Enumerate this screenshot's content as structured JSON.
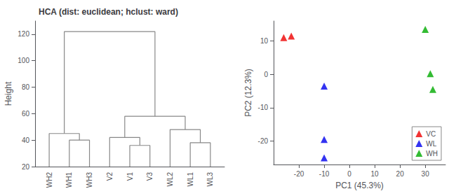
{
  "chart_data": [
    {
      "type": "dendrogram",
      "title": "HCA (dist: euclidean; hclust: ward)",
      "ylabel": "Height",
      "categories": [
        "WH2",
        "WH1",
        "WH3",
        "V2",
        "V1",
        "V3",
        "WL2",
        "WL1",
        "WL3"
      ],
      "ylim": [
        20,
        130
      ],
      "yticks": [
        20,
        40,
        60,
        80,
        100,
        120
      ],
      "grid": false,
      "color": "#888888",
      "tree": {
        "height": 122,
        "children": [
          {
            "height": 45,
            "children": [
              "WH2",
              {
                "height": 40,
                "children": [
                  "WH1",
                  "WH3"
                ]
              }
            ]
          },
          {
            "height": 58,
            "children": [
              {
                "height": 42,
                "children": [
                  "V2",
                  {
                    "height": 36,
                    "children": [
                      "V1",
                      "V3"
                    ]
                  }
                ]
              },
              {
                "height": 48,
                "children": [
                  "WL2",
                  {
                    "height": 38,
                    "children": [
                      "WL1",
                      "WL3"
                    ]
                  }
                ]
              }
            ]
          }
        ]
      }
    },
    {
      "type": "scatter",
      "xlabel": "PC1 (45.3%)",
      "ylabel": "PC2 (12.3%)",
      "xlim": [
        -30,
        38
      ],
      "ylim": [
        -27,
        16
      ],
      "xticks": [
        -20,
        -10,
        0,
        10,
        20,
        30
      ],
      "yticks": [
        -20,
        -10,
        0,
        10
      ],
      "grid": false,
      "marker": "triangle",
      "legend": "lower right",
      "series": [
        {
          "name": "VC",
          "color": "#EE0000",
          "values": [
            [
              -26,
              11
            ],
            [
              -23,
              11.5
            ]
          ]
        },
        {
          "name": "WL",
          "color": "#0000EE",
          "values": [
            [
              -10,
              -3.5
            ],
            [
              -10,
              -19.5
            ],
            [
              -10,
              -25
            ]
          ]
        },
        {
          "name": "WH",
          "color": "#00AA00",
          "values": [
            [
              30,
              13.5
            ],
            [
              32,
              0.2
            ],
            [
              33,
              -4.5
            ]
          ]
        }
      ]
    }
  ]
}
